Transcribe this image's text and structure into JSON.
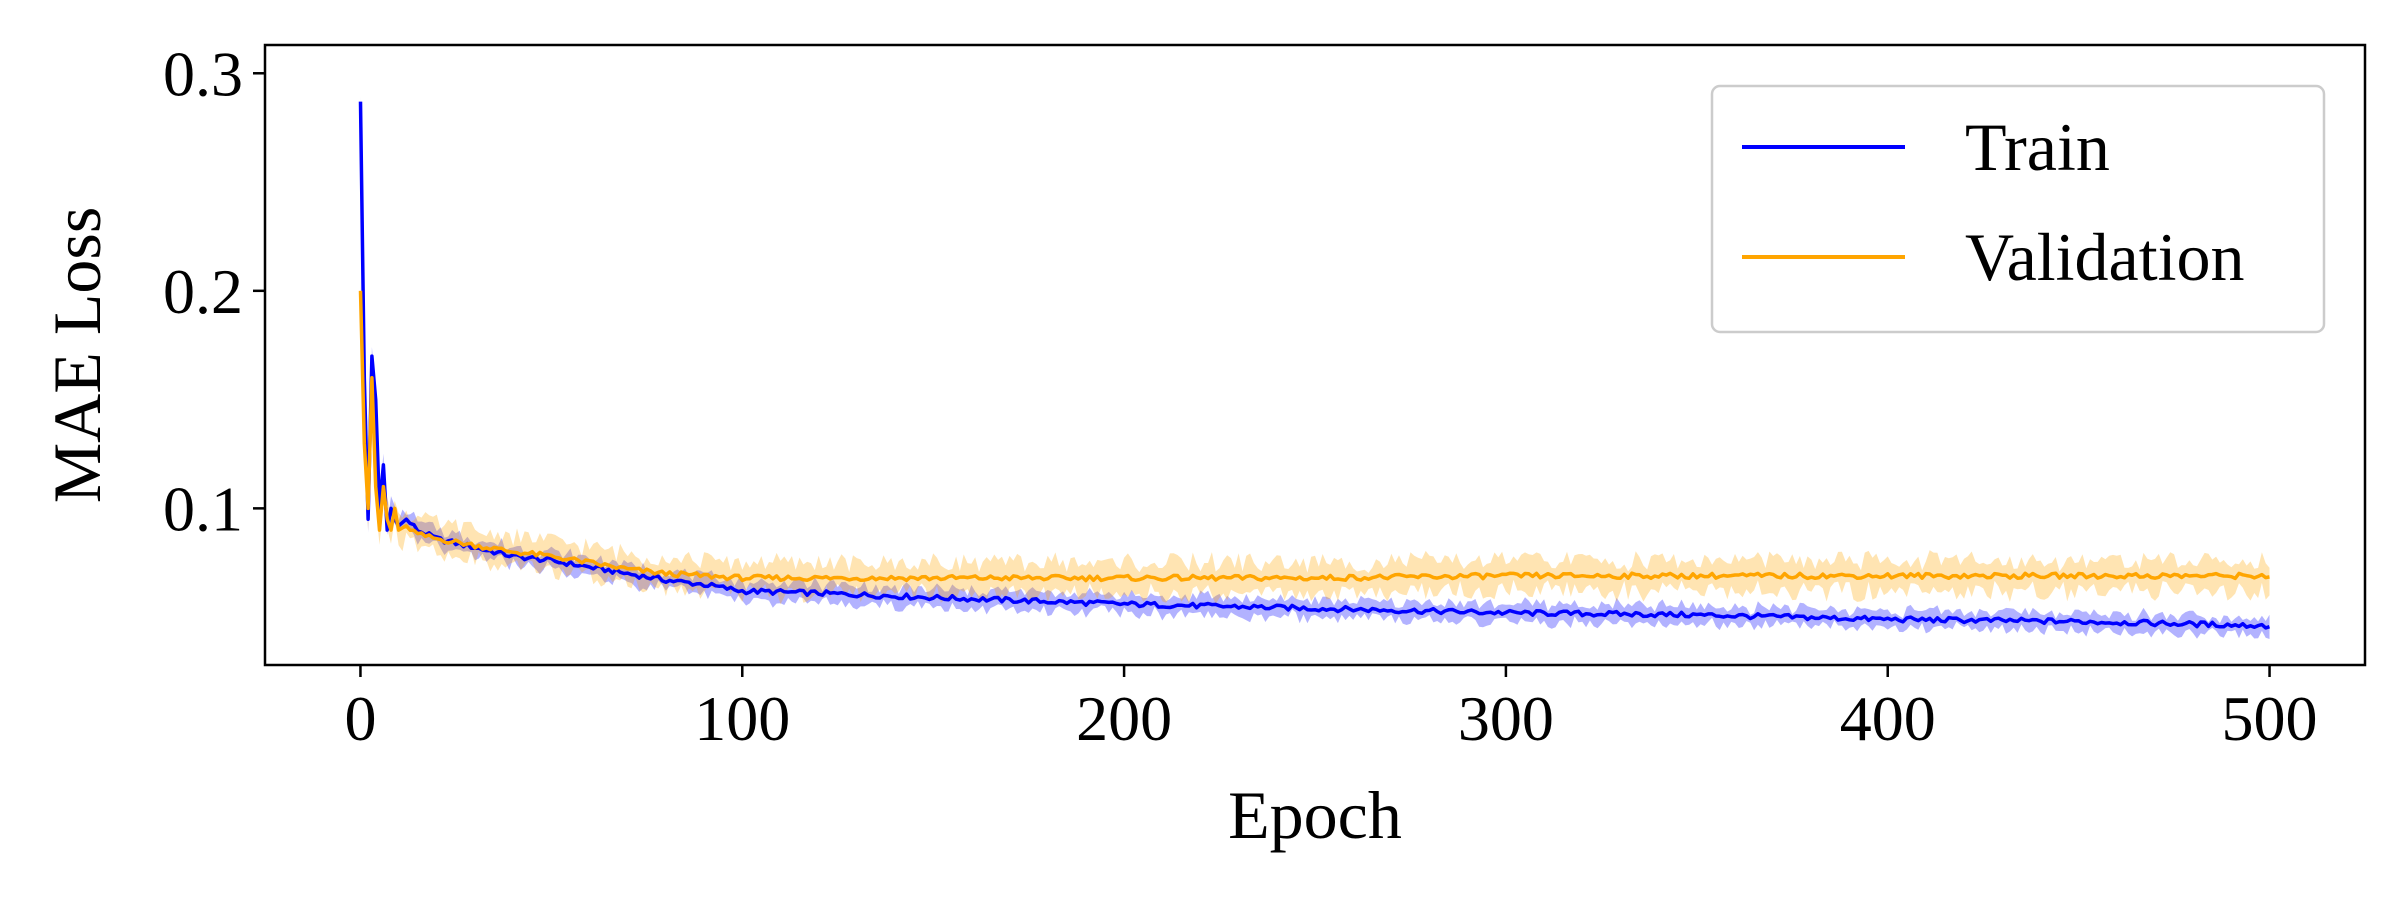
{
  "chart_data": {
    "type": "line",
    "title": "",
    "xlabel": "Epoch",
    "ylabel": "MAE Loss",
    "xlim": [
      -25,
      525
    ],
    "ylim": [
      0.028,
      0.313
    ],
    "xticks": [
      0,
      100,
      200,
      300,
      400,
      500
    ],
    "yticks": [
      0.1,
      0.2,
      0.3
    ],
    "xtick_labels": [
      "0",
      "100",
      "200",
      "300",
      "400",
      "500"
    ],
    "ytick_labels": [
      "0.1",
      "0.2",
      "0.3"
    ],
    "grid": false,
    "legend_position": "top-right",
    "colors": {
      "train": "#0000ff",
      "validation": "#ffa500"
    },
    "series": [
      {
        "name": "Train",
        "color": "#0000ff",
        "x": [
          0,
          1,
          2,
          3,
          4,
          5,
          6,
          7,
          8,
          9,
          10,
          12,
          15,
          20,
          30,
          40,
          50,
          60,
          70,
          80,
          90,
          100,
          120,
          150,
          200,
          250,
          300,
          350,
          400,
          450,
          500
        ],
        "y": [
          0.287,
          0.16,
          0.095,
          0.17,
          0.15,
          0.1,
          0.12,
          0.09,
          0.1,
          0.095,
          0.092,
          0.095,
          0.09,
          0.086,
          0.082,
          0.078,
          0.076,
          0.073,
          0.07,
          0.067,
          0.065,
          0.062,
          0.061,
          0.059,
          0.056,
          0.054,
          0.052,
          0.051,
          0.049,
          0.048,
          0.046
        ],
        "band": 0.004
      },
      {
        "name": "Validation",
        "color": "#ffa500",
        "x": [
          0,
          1,
          2,
          3,
          4,
          5,
          6,
          7,
          8,
          9,
          10,
          12,
          15,
          20,
          30,
          40,
          50,
          60,
          70,
          80,
          90,
          100,
          120,
          150,
          200,
          250,
          300,
          350,
          400,
          450,
          500
        ],
        "y": [
          0.2,
          0.13,
          0.1,
          0.16,
          0.11,
          0.09,
          0.11,
          0.095,
          0.09,
          0.1,
          0.09,
          0.092,
          0.088,
          0.086,
          0.083,
          0.08,
          0.078,
          0.075,
          0.072,
          0.07,
          0.069,
          0.068,
          0.068,
          0.068,
          0.068,
          0.068,
          0.069,
          0.069,
          0.069,
          0.069,
          0.069
        ],
        "band": 0.007
      }
    ]
  }
}
